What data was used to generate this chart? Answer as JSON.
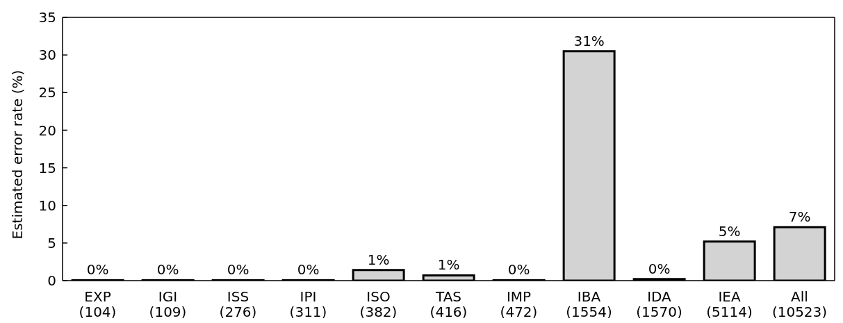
{
  "chart_data": {
    "type": "bar",
    "ylabel": "Estimated error rate (%)",
    "categories": [
      "EXP\n(104)",
      "IGI\n(109)",
      "ISS\n(276)",
      "IPI\n(311)",
      "ISO\n(382)",
      "TAS\n(416)",
      "IMP\n(472)",
      "IBA\n(1554)",
      "IDA\n(1570)",
      "IEA\n(5114)",
      "All\n(10523)"
    ],
    "values": [
      0.05,
      0.05,
      0.05,
      0.05,
      1.4,
      0.7,
      0.05,
      30.5,
      0.2,
      5.2,
      7.1
    ],
    "value_labels": [
      "0%",
      "0%",
      "0%",
      "0%",
      "1%",
      "1%",
      "0%",
      "31%",
      "0%",
      "5%",
      "7%"
    ],
    "color": "#d3d3d3",
    "ylim": [
      0,
      35
    ],
    "yticks": [
      0,
      5,
      10,
      15,
      20,
      25,
      30,
      35
    ],
    "grid": false
  }
}
